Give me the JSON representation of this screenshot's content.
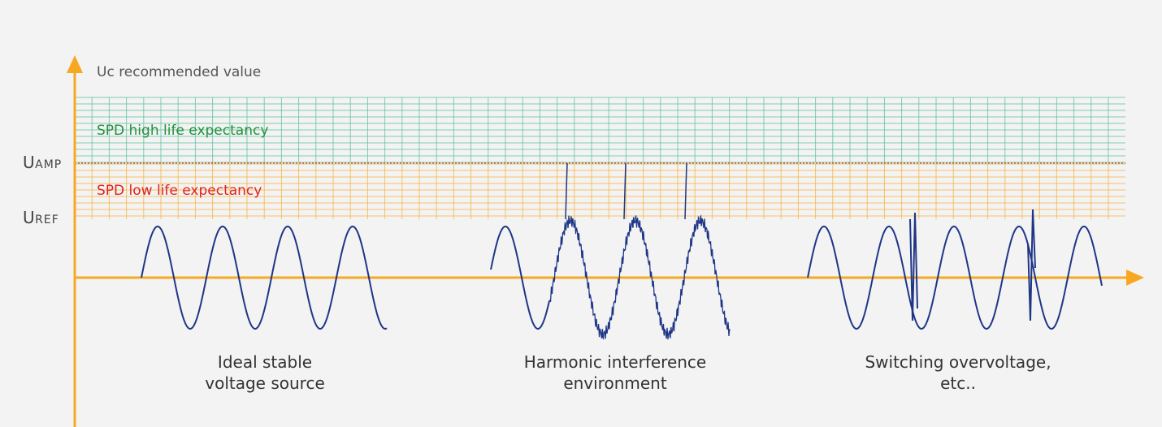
{
  "colors": {
    "background": "#f3f3f3",
    "axis": "#f7a823",
    "wave": "#1f3687",
    "high_zone_grid": "#5cbf9a",
    "low_zone_grid": "#f5b23a",
    "high_zone_text": "#23913d",
    "low_zone_text": "#e0231f",
    "separator": "#c22a2a"
  },
  "axis": {
    "y_title": "Uc recommended value"
  },
  "levels": {
    "u_amp": {
      "main": "U",
      "sub": "AMP"
    },
    "u_ref": {
      "main": "U",
      "sub": "REF"
    }
  },
  "zones": {
    "high": {
      "label": "SPD high life expectancy"
    },
    "low": {
      "label": "SPD low life expectancy"
    }
  },
  "scenarios": [
    {
      "caption_line1": "Ideal stable",
      "caption_line2": "voltage source",
      "waveform": "clean sine"
    },
    {
      "caption_line1": "Harmonic interference",
      "caption_line2": "environment",
      "waveform": "sine with harmonic ripple and spikes"
    },
    {
      "caption_line1": "Switching overvoltage,",
      "caption_line2": "etc..",
      "waveform": "sine with switching spikes"
    }
  ]
}
